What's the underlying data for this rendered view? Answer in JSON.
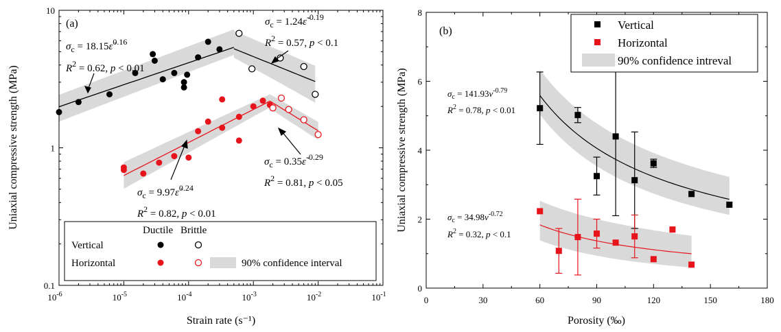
{
  "chart_data": [
    {
      "id": "a",
      "type": "scatter",
      "panel_label": "(a)",
      "xlabel": "Strain rate (s⁻¹)",
      "ylabel": "Uniaxial compressive strength (MPa)",
      "xscale": "log",
      "yscale": "log",
      "xlim": [
        1e-06,
        0.1
      ],
      "ylim": [
        0.1,
        10
      ],
      "x_ticks": [
        {
          "value": 1e-06,
          "base": "10",
          "exp": "-6"
        },
        {
          "value": 1e-05,
          "base": "10",
          "exp": "-5"
        },
        {
          "value": 0.0001,
          "base": "10",
          "exp": "-4"
        },
        {
          "value": 0.001,
          "base": "10",
          "exp": "-3"
        },
        {
          "value": 0.01,
          "base": "10",
          "exp": "-2"
        },
        {
          "value": 0.1,
          "base": "10",
          "exp": "-1"
        }
      ],
      "y_ticks": [
        {
          "value": 0.1,
          "label": "0.1"
        },
        {
          "value": 1,
          "label": "1"
        },
        {
          "value": 10,
          "label": "10"
        }
      ],
      "colors": {
        "vertical": "#000000",
        "horizontal": "#e8141c",
        "band": "#d9d9d9"
      },
      "series": [
        {
          "key": "vd",
          "marker": "filled",
          "color": "#000000",
          "points": [
            [
              1e-06,
              1.82
            ],
            [
              2e-06,
              2.15
            ],
            [
              6e-06,
              2.45
            ],
            [
              1.5e-05,
              3.5
            ],
            [
              2.8e-05,
              4.8
            ],
            [
              3e-05,
              4.3
            ],
            [
              4e-05,
              3.15
            ],
            [
              6e-05,
              3.5
            ],
            [
              8.5e-05,
              3.0
            ],
            [
              8.5e-05,
              2.75
            ],
            [
              9.5e-05,
              3.4
            ],
            [
              0.00014,
              4.55
            ],
            [
              0.0002,
              5.9
            ],
            [
              0.0003,
              5.2
            ]
          ]
        },
        {
          "key": "vb",
          "marker": "open",
          "color": "#000000",
          "points": [
            [
              0.0006,
              6.8
            ],
            [
              0.00095,
              3.75
            ],
            [
              0.0026,
              4.5
            ],
            [
              0.006,
              3.9
            ],
            [
              0.009,
              2.45
            ]
          ]
        },
        {
          "key": "hd",
          "marker": "filled",
          "color": "#e8141c",
          "points": [
            [
              1e-05,
              0.72
            ],
            [
              1e-05,
              0.69
            ],
            [
              2e-05,
              0.65
            ],
            [
              3.5e-05,
              0.78
            ],
            [
              6e-05,
              0.87
            ],
            [
              0.0001,
              0.85
            ],
            [
              0.00014,
              1.32
            ],
            [
              0.0002,
              1.55
            ],
            [
              0.00033,
              1.4
            ],
            [
              0.00033,
              2.25
            ],
            [
              0.0006,
              1.68
            ],
            [
              0.0006,
              1.13
            ],
            [
              0.001,
              2.0
            ],
            [
              0.0014,
              2.2
            ],
            [
              0.0018,
              2.05
            ]
          ]
        },
        {
          "key": "hb",
          "marker": "open",
          "color": "#e8141c",
          "points": [
            [
              0.002,
              1.95
            ],
            [
              0.0027,
              2.3
            ],
            [
              0.0035,
              1.9
            ],
            [
              0.006,
              1.6
            ],
            [
              0.01,
              1.25
            ]
          ]
        }
      ],
      "fits": [
        {
          "key": "vd-fit",
          "color": "#000000",
          "a": 18.15,
          "b": 0.16,
          "x_range": [
            1e-06,
            0.0005
          ]
        },
        {
          "key": "vb-fit",
          "color": "#000000",
          "a": 1.24,
          "b": -0.19,
          "x_range": [
            0.0005,
            0.009
          ]
        },
        {
          "key": "hd-fit",
          "color": "#e8141c",
          "a": 9.97,
          "b": 0.24,
          "x_range": [
            1e-05,
            0.0018
          ]
        },
        {
          "key": "hb-fit",
          "color": "#e8141c",
          "a": 0.35,
          "b": -0.29,
          "x_range": [
            0.0018,
            0.01
          ]
        }
      ],
      "bands": [
        {
          "key": "vd-band",
          "x_range": [
            1e-06,
            0.0005
          ],
          "a": 18.15,
          "b": 0.16,
          "lower_factor": [
            0.78,
            0.88
          ],
          "upper_factor": [
            1.22,
            1.35
          ]
        },
        {
          "key": "vb-band",
          "x_range": [
            0.0005,
            0.009
          ],
          "a": 1.24,
          "b": -0.19,
          "lower_factor": [
            0.86,
            0.7
          ],
          "upper_factor": [
            1.35,
            1.3
          ]
        },
        {
          "key": "hd-band",
          "x_range": [
            1e-05,
            0.0018
          ],
          "a": 9.97,
          "b": 0.24,
          "lower_factor": [
            0.8,
            0.9
          ],
          "upper_factor": [
            1.25,
            1.12
          ]
        },
        {
          "key": "hb-band",
          "x_range": [
            0.0018,
            0.01
          ],
          "a": 0.35,
          "b": -0.29,
          "lower_factor": [
            0.88,
            0.86
          ],
          "upper_factor": [
            1.12,
            1.16
          ]
        }
      ],
      "annotations": {
        "vd": {
          "sigma": "σ",
          "sub": "c",
          "eq": " = 18.15",
          "var": "ε̇",
          "exp": "0.16",
          "r2": "R",
          "r2exp": "2",
          "r2val": " = 0.62, ",
          "p": "p",
          "pval": " < 0.01"
        },
        "vb": {
          "sigma": "σ",
          "sub": "c",
          "eq": " = 1.24",
          "var": "ε̇",
          "exp": "-0.19",
          "r2": "R",
          "r2exp": "2",
          "r2val": " = 0.57, ",
          "p": "p",
          "pval": " < 0.1"
        },
        "hd": {
          "sigma": "σ",
          "sub": "c",
          "eq": " = 9.97",
          "var": "ε̇",
          "exp": "0.24",
          "r2": "R",
          "r2exp": "2",
          "r2val": " = 0.82, ",
          "p": "p",
          "pval": " < 0.01"
        },
        "hb": {
          "sigma": "σ",
          "sub": "c",
          "eq": " = 0.35",
          "var": "ε̇",
          "exp": "-0.29",
          "r2": "R",
          "r2exp": "2",
          "r2val": " = 0.81, ",
          "p": "p",
          "pval": " < 0.05"
        }
      },
      "legend": {
        "position": "bottom",
        "col_ductile": "Ductile",
        "col_brittle": "Brittle",
        "row_vertical": "Vertical",
        "row_horizontal": "Horizontal",
        "band_label": "90% confidence interval"
      }
    },
    {
      "id": "b",
      "type": "scatter",
      "panel_label": "(b)",
      "xlabel": "Porosity (‰)",
      "ylabel": "Uniaxial compressive strength (MPa)",
      "xlim": [
        0,
        180
      ],
      "ylim": [
        0,
        8
      ],
      "x_ticks": [
        0,
        30,
        60,
        90,
        120,
        150,
        180
      ],
      "y_ticks": [
        0,
        2,
        4,
        6,
        8
      ],
      "colors": {
        "vertical": "#000000",
        "horizontal": "#e8141c",
        "band": "#d9d9d9"
      },
      "series": [
        {
          "key": "vertical",
          "name": "Vertical",
          "color": "#000000",
          "points": [
            [
              60,
              5.22,
              1.05
            ],
            [
              80,
              5.02,
              0.22
            ],
            [
              90,
              3.25,
              0.55
            ],
            [
              100,
              4.4,
              2.3
            ],
            [
              110,
              3.13,
              1.4
            ],
            [
              120,
              3.62,
              0.12
            ],
            [
              140,
              2.73,
              0
            ],
            [
              160,
              2.42,
              0
            ]
          ]
        },
        {
          "key": "horizontal",
          "name": "Horizontal",
          "color": "#e8141c",
          "points": [
            [
              60,
              2.23,
              0
            ],
            [
              70,
              1.08,
              0.65
            ],
            [
              80,
              1.48,
              1.1
            ],
            [
              90,
              1.58,
              0.42
            ],
            [
              100,
              1.32,
              0
            ],
            [
              110,
              1.5,
              0.62
            ],
            [
              120,
              0.84,
              0
            ],
            [
              130,
              1.7,
              0
            ],
            [
              140,
              0.68,
              0
            ]
          ]
        }
      ],
      "fits": [
        {
          "key": "v-fit",
          "color": "#000000",
          "a": 141.93,
          "b": -0.79,
          "x_range": [
            60,
            160
          ]
        },
        {
          "key": "h-fit",
          "color": "#e8141c",
          "a": 34.98,
          "b": -0.72,
          "x_range": [
            60,
            140
          ]
        }
      ],
      "bands": [
        {
          "key": "v-band",
          "x_range": [
            60,
            160
          ],
          "a": 141.93,
          "b": -0.79,
          "lower_offset": [
            -0.55,
            -0.45
          ],
          "upper_offset": [
            0.75,
            0.65
          ]
        },
        {
          "key": "h-band",
          "x_range": [
            60,
            140
          ],
          "a": 34.98,
          "b": -0.72,
          "lower_offset": [
            -0.45,
            -0.4
          ],
          "upper_offset": [
            0.7,
            0.52
          ]
        }
      ],
      "annotations": {
        "v": {
          "sigma": "σ",
          "sub": "c",
          "eq": " = 141.93",
          "var": "ν",
          "exp": "-0.79",
          "r2": "R",
          "r2exp": "2",
          "r2val": " = 0.78, ",
          "p": "p",
          "pval": " < 0.01"
        },
        "h": {
          "sigma": "σ",
          "sub": "c",
          "eq": " = 34.98",
          "var": "ν",
          "exp": "-0.72",
          "r2": "R",
          "r2exp": "2",
          "r2val": " = 0.32, ",
          "p": "p",
          "pval": " < 0.1"
        }
      },
      "legend": {
        "position": "top-right",
        "vertical": "Vertical",
        "horizontal": "Horizontal",
        "band_label": "90% confidence intreval"
      }
    }
  ]
}
